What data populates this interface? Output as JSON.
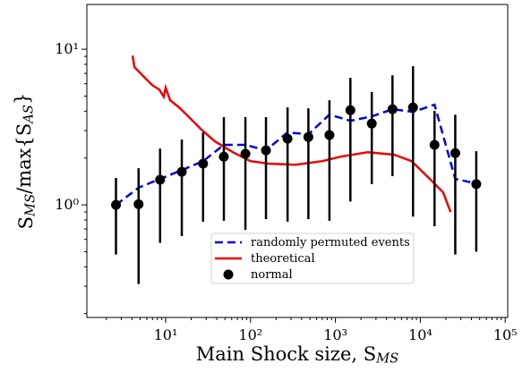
{
  "chart_data": {
    "type": "line",
    "xlabel": "Main Shock size, S_{MS}",
    "ylabel": "S_{MS}/max{S_{AS}}",
    "xscale": "log",
    "yscale": "log",
    "xlim": [
      1.18,
      107000
    ],
    "ylim": [
      0.189,
      19.4
    ],
    "xticks": [
      {
        "value": 10,
        "label": "10¹"
      },
      {
        "value": 100,
        "label": "10²"
      },
      {
        "value": 1000,
        "label": "10³"
      },
      {
        "value": 10000,
        "label": "10⁴"
      },
      {
        "value": 100000,
        "label": "10⁵"
      }
    ],
    "yticks": [
      {
        "value": 1,
        "label": "10⁰"
      },
      {
        "value": 10,
        "label": "10¹"
      }
    ],
    "legend": "lower center",
    "series": [
      {
        "name": "randomly permuted events",
        "color": "#0000dd",
        "style": "dashed",
        "x": [
          2.6,
          4.8,
          8.6,
          15.5,
          27.6,
          48.5,
          87,
          152,
          273,
          480,
          850,
          1500,
          2680,
          4700,
          8200,
          14700,
          25800,
          45600
        ],
        "values": [
          1.0,
          1.29,
          1.47,
          1.67,
          1.91,
          2.43,
          2.43,
          2.24,
          2.92,
          2.84,
          3.8,
          3.47,
          3.7,
          4.12,
          3.96,
          4.4,
          1.47,
          1.37
        ]
      },
      {
        "name": "theoretical",
        "color": "#ee0000",
        "style": "solid",
        "x": [
          4.07,
          4.3,
          5.45,
          6.95,
          8.4,
          9.5,
          10,
          11.3,
          14.4,
          18.4,
          26.5,
          38,
          62,
          100,
          163,
          340,
          700,
          1150,
          2400,
          4900,
          7900,
          12900,
          18600,
          22700
        ],
        "values": [
          9.1,
          7.67,
          6.72,
          5.88,
          5.51,
          4.96,
          5.66,
          4.7,
          4.23,
          3.71,
          3.04,
          2.56,
          2.18,
          1.91,
          1.84,
          1.81,
          1.91,
          2.04,
          2.18,
          2.1,
          1.91,
          1.47,
          1.2,
          0.9
        ]
      },
      {
        "name": "normal",
        "color": "#000000",
        "style": "points",
        "x": [
          2.6,
          4.8,
          8.6,
          15.5,
          27.6,
          48.5,
          87,
          152,
          273,
          480,
          850,
          1500,
          2680,
          4700,
          8200,
          14700,
          25800,
          45600
        ],
        "values": [
          1.0,
          1.01,
          1.45,
          1.63,
          1.84,
          2.04,
          2.13,
          2.24,
          2.66,
          2.73,
          2.81,
          4.06,
          3.33,
          4.12,
          4.23,
          2.43,
          2.15,
          1.36
        ],
        "lower": [
          0.48,
          0.31,
          0.57,
          0.63,
          0.78,
          0.79,
          0.69,
          0.81,
          0.78,
          0.81,
          0.79,
          1.05,
          1.36,
          1.53,
          0.84,
          0.73,
          0.48,
          0.5
        ],
        "upper": [
          1.49,
          1.72,
          2.3,
          2.63,
          2.92,
          3.66,
          3.66,
          3.66,
          4.23,
          4.17,
          4.7,
          6.55,
          5.3,
          6.8,
          7.77,
          4.01,
          3.8,
          2.21
        ]
      }
    ]
  }
}
